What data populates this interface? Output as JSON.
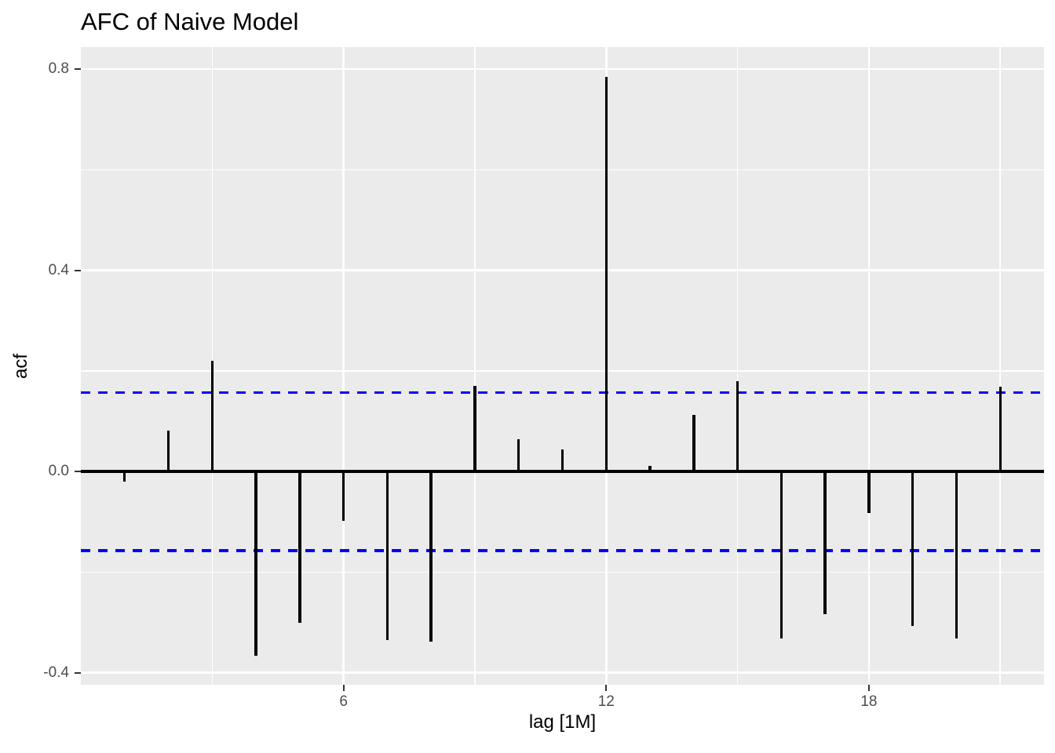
{
  "title": "AFC of Naive Model",
  "axes": {
    "x_label": "lag [1M]",
    "y_label": "acf"
  },
  "chart_data": {
    "type": "bar",
    "title": "AFC of Naive Model",
    "xlabel": "lag [1M]",
    "ylabel": "acf",
    "x": [
      1,
      2,
      3,
      4,
      5,
      6,
      7,
      8,
      9,
      10,
      11,
      12,
      13,
      14,
      15,
      16,
      17,
      18,
      19,
      20,
      21
    ],
    "values": [
      -0.02,
      0.082,
      0.22,
      -0.366,
      -0.301,
      -0.098,
      -0.335,
      -0.338,
      0.171,
      0.064,
      0.044,
      0.785,
      0.011,
      0.113,
      0.179,
      -0.332,
      -0.284,
      -0.082,
      -0.307,
      -0.332,
      0.169
    ],
    "confidence_bound": 0.157,
    "xlim": [
      0,
      22
    ],
    "ylim": [
      -0.424,
      0.844
    ],
    "x_ticks": [
      {
        "label": "6",
        "value": 6
      },
      {
        "label": "12",
        "value": 12
      },
      {
        "label": "18",
        "value": 18
      }
    ],
    "y_ticks": [
      {
        "label": "0.8",
        "value": 0.8
      },
      {
        "label": "0.4",
        "value": 0.4
      },
      {
        "label": "0.0",
        "value": 0.0
      },
      {
        "label": "-0.4",
        "value": -0.4
      }
    ],
    "x_major_gridlines": [
      6,
      12,
      18
    ],
    "x_minor_gridlines": [
      3,
      9,
      15,
      21
    ],
    "y_major_gridlines": [
      0.8,
      0.4,
      0.0,
      -0.4
    ],
    "y_minor_gridlines": [
      0.6,
      0.2,
      -0.2
    ],
    "grid": "on",
    "legend": "none",
    "colors": {
      "bar": "#000000",
      "zero_line": "#000000",
      "ci_line": "#0000FF",
      "panel_bg": "#EBEBEB",
      "gridline": "#FFFFFF",
      "tick_text": "#4D4D4D",
      "tick_mark": "#333333",
      "title_text": "#000000"
    }
  }
}
